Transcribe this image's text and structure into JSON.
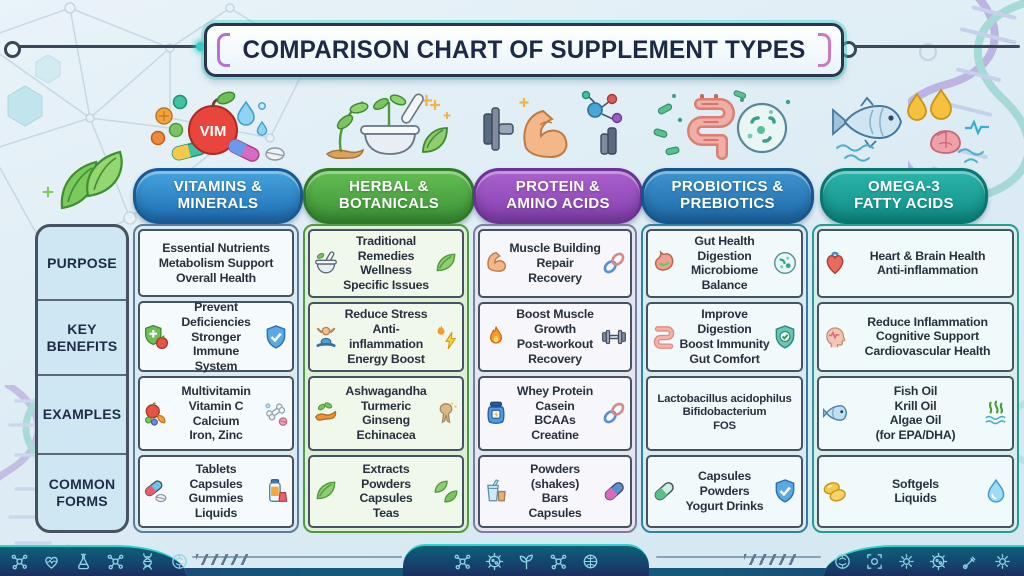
{
  "title": "COMPARISON CHART OF SUPPLEMENT TYPES",
  "row_labels": [
    "PURPOSE",
    "KEY\nBENEFITS",
    "EXAMPLES",
    "COMMON\nFORMS"
  ],
  "columns": [
    {
      "title": "VITAMINS &\nMINERALS",
      "badge": "VIM",
      "accent": "#1f6fb4",
      "purpose": "Essential Nutrients\nMetabolism Support\nOverall Health",
      "benefits": "Prevent Deficiencies\nStronger Immune\nSystem",
      "examples": "Multivitamin\nVitamin C\nCalcium\nIron, Zinc",
      "forms": "Tablets\nCapsules\nGummies\nLiquids"
    },
    {
      "title": "HERBAL &\nBOTANICALS",
      "accent": "#3c9336",
      "purpose": "Traditional Remedies\nWellness\nSpecific Issues",
      "benefits": "Reduce Stress\nAnti-inflammation\nEnergy Boost",
      "examples": "Ashwagandha\nTurmeric\nGinseng\nEchinacea",
      "forms": "Extracts\nPowders\nCapsules\nTeas"
    },
    {
      "title": "PROTEIN &\nAMINO ACIDS",
      "accent": "#8440ae",
      "purpose": "Muscle Building\nRepair\nRecovery",
      "benefits": "Boost Muscle Growth\nPost-workout\nRecovery",
      "examples": "Whey Protein\nCasein\nBCAAs\nCreatine",
      "forms": "Powders (shakes)\nBars\nCapsules"
    },
    {
      "title": "PROBIOTICS &\nPREBIOTICS",
      "accent": "#1e6aa9",
      "purpose": "Gut Health\nDigestion\nMicrobiome Balance",
      "benefits": "Improve Digestion\nBoost Immunity\nGut Comfort",
      "examples": "Lactobacillus acidophilus\nBifidobacterium\nFOS",
      "forms": "Capsules\nPowders\nYogurt Drinks"
    },
    {
      "title": "OMEGA-3\nFATTY ACIDS",
      "accent": "#0e8d86",
      "purpose": "Heart & Brain Health\nAnti-inflammation",
      "benefits": "Reduce Inflammation\nCognitive Support\nCardiovascular Health",
      "examples": "Fish Oil\nKrill Oil\nAlgae Oil\n(for EPA/DHA)",
      "forms": "Softgels\nLiquids"
    }
  ],
  "icons": {
    "mortar-pestle-icon": "bowl+pestle",
    "leaf-icon": "leaf",
    "leaf-pair-icon": "two leaves",
    "muscle-arm-icon": "flexed arm",
    "chain-link-icon": "chain links",
    "stomach-icon": "stomach",
    "petri-dish-icon": "microbe dish",
    "heart-organ-icon": "anatomical heart",
    "shield-apple-icon": "green shield + apple",
    "shield-check-icon": "shield with check",
    "stressed-person-icon": "person hands on head",
    "flame-icon": "flame",
    "bolt-icon": "lightning",
    "dumbbell-icon": "dumbbell",
    "intestine-icon": "gut coil",
    "head-pulse-icon": "head profile + pulse",
    "fruit-mix-icon": "apple/orange/berries",
    "bone-pill-icon": "bone + tablet",
    "turmeric-root-icon": "turmeric root",
    "ginseng-root-icon": "ginseng root",
    "protein-jar-icon": "supplement jar",
    "shake-cup-icon": "protein shake",
    "capsule-icon": "two-tone capsule",
    "capsule-tablet-icon": "capsule + tablet",
    "bottle-gummy-icon": "bottle + gummy",
    "fish-icon": "fish",
    "algae-icon": "algae + waves",
    "softgel-icon": "softgel pills",
    "water-drop-icon": "water drop"
  },
  "footer": {
    "left_icons": [
      "molecule",
      "heart-pulse",
      "flask",
      "molecule",
      "dna",
      "brain"
    ],
    "center_icons": [
      "molecule",
      "microbe",
      "sprout",
      "molecule",
      "globe-brain"
    ],
    "right_icons": [
      "brain",
      "scan-frame",
      "gear",
      "microbe",
      "pipette",
      "gear"
    ]
  },
  "colors": {
    "background": "#dcebf4",
    "title_text": "#1c2a47",
    "cell_text": "#27313d",
    "teal_accent": "#35d0c8",
    "footer_navy": "#1b2f5e",
    "footer_teal": "#0e6079",
    "vitamins_blue": "#1f6fb4",
    "herbal_green": "#3c9336",
    "protein_purple": "#8440ae",
    "probiotics_blue": "#1e6aa9",
    "omega_teal": "#0e8d86"
  },
  "chart_data": {
    "type": "table",
    "title": "Comparison Chart of Supplement Types",
    "columns": [
      "Vitamins & Minerals",
      "Herbal & Botanicals",
      "Protein & Amino Acids",
      "Probiotics & Prebiotics",
      "Omega-3 Fatty Acids"
    ],
    "row_headers": [
      "Purpose",
      "Key Benefits",
      "Examples",
      "Common Forms"
    ],
    "cells": [
      [
        "Essential Nutrients; Metabolism Support; Overall Health",
        "Traditional Remedies; Wellness; Specific Issues",
        "Muscle Building; Repair; Recovery",
        "Gut Health; Digestion; Microbiome Balance",
        "Heart & Brain Health; Anti-inflammation"
      ],
      [
        "Prevent Deficiencies; Stronger Immune System",
        "Reduce Stress; Anti-inflammation; Energy Boost",
        "Boost Muscle Growth; Post-workout Recovery",
        "Improve Digestion; Boost Immunity; Gut Comfort",
        "Reduce Inflammation; Cognitive Support; Cardiovascular Health"
      ],
      [
        "Multivitamin; Vitamin C; Calcium; Iron, Zinc",
        "Ashwagandha; Turmeric; Ginseng; Echinacea",
        "Whey Protein; Casein; BCAAs; Creatine",
        "Lactobacillus acidophilus; Bifidobacterium; FOS",
        "Fish Oil; Krill Oil; Algae Oil (for EPA/DHA)"
      ],
      [
        "Tablets; Capsules; Gummies; Liquids",
        "Extracts; Powders; Capsules; Teas",
        "Powders (shakes); Bars; Capsules",
        "Capsules; Powders; Yogurt Drinks",
        "Softgels; Liquids"
      ]
    ]
  }
}
